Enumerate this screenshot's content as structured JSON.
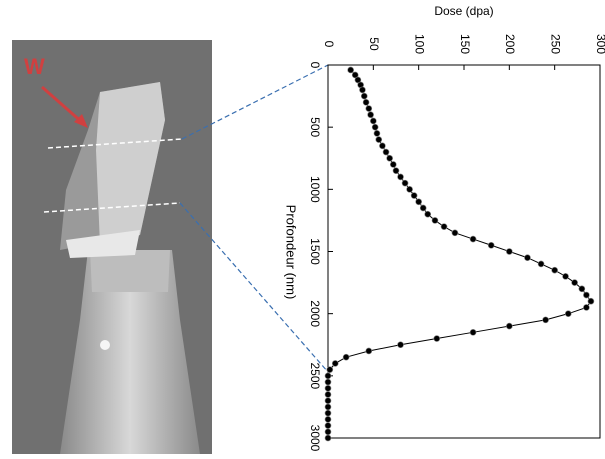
{
  "image": {
    "label": "W"
  },
  "chart_data": {
    "type": "line",
    "x_label": "Dose (dpa)",
    "y_label": "Profondeur (nm)",
    "x": [
      40,
      80,
      120,
      160,
      200,
      250,
      300,
      350,
      400,
      450,
      500,
      550,
      600,
      650,
      700,
      750,
      800,
      850,
      900,
      950,
      1000,
      1050,
      1100,
      1150,
      1200,
      1250,
      1300,
      1350,
      1400,
      1450,
      1500,
      1550,
      1600,
      1650,
      1700,
      1750,
      1800,
      1850,
      1900,
      1950,
      2000,
      2050,
      2100,
      2150,
      2200,
      2250,
      2300,
      2350,
      2400,
      2450,
      2500,
      2550,
      2600,
      2650,
      2700,
      2750,
      2800,
      2850,
      2900,
      2950,
      3000
    ],
    "series": [
      {
        "name": "Dose",
        "color": "#000000",
        "values": [
          25,
          30,
          33,
          36,
          38,
          40,
          42,
          45,
          47,
          50,
          52,
          54,
          56,
          60,
          64,
          68,
          72,
          75,
          80,
          85,
          90,
          95,
          100,
          105,
          110,
          118,
          128,
          140,
          160,
          180,
          200,
          220,
          235,
          250,
          262,
          272,
          280,
          285,
          290,
          285,
          265,
          240,
          200,
          160,
          120,
          80,
          45,
          20,
          8,
          2,
          0,
          0,
          0,
          0,
          0,
          0,
          0,
          0,
          0,
          0,
          0
        ]
      }
    ],
    "xlim": [
      0,
      3000
    ],
    "xticks": [
      0,
      500,
      1000,
      1500,
      2000,
      2500,
      3000
    ],
    "ylim": [
      0,
      300
    ],
    "yticks": [
      0,
      50,
      100,
      150,
      200,
      250,
      300
    ]
  }
}
